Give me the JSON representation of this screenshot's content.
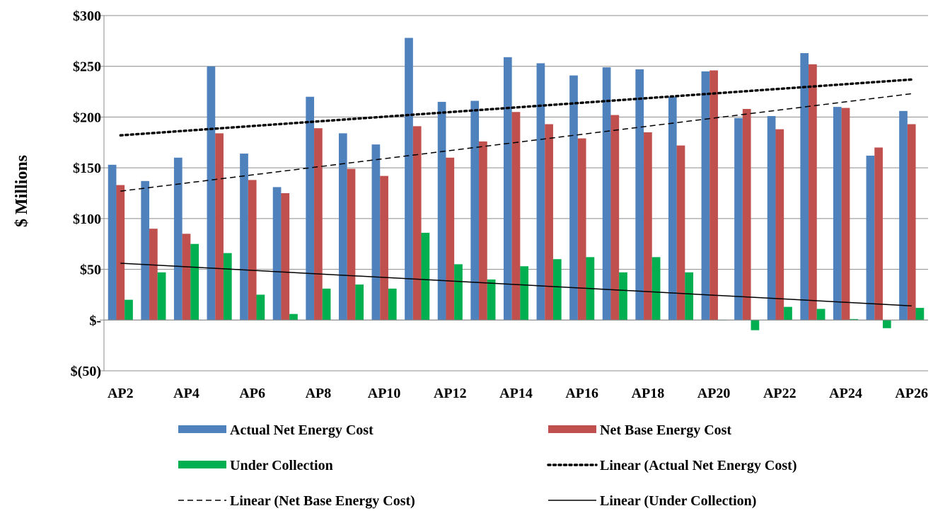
{
  "chart_data": {
    "type": "bar",
    "title": "",
    "xlabel": "",
    "ylabel": "$ Millions",
    "ylim": [
      -50,
      300
    ],
    "yticks": [
      {
        "value": 300,
        "label": "$300"
      },
      {
        "value": 250,
        "label": "$250"
      },
      {
        "value": 200,
        "label": "$200"
      },
      {
        "value": 150,
        "label": "$150"
      },
      {
        "value": 100,
        "label": "$100"
      },
      {
        "value": 50,
        "label": "$50"
      },
      {
        "value": 0,
        "label": "$-"
      },
      {
        "value": -50,
        "label": "$(50)"
      }
    ],
    "categories": [
      "AP2",
      "AP3",
      "AP4",
      "AP5",
      "AP6",
      "AP7",
      "AP8",
      "AP9",
      "AP10",
      "AP11",
      "AP12",
      "AP13",
      "AP14",
      "AP15",
      "AP16",
      "AP17",
      "AP18",
      "AP19",
      "AP20",
      "AP21",
      "AP22",
      "AP23",
      "AP24",
      "AP25",
      "AP26"
    ],
    "tick_labels_shown": [
      "AP2",
      "AP4",
      "AP6",
      "AP8",
      "AP10",
      "AP12",
      "AP14",
      "AP16",
      "AP18",
      "AP20",
      "AP22",
      "AP24",
      "AP26"
    ],
    "series": [
      {
        "name": "Actual Net Energy Cost",
        "color": "#4F81BD",
        "values": [
          153,
          137,
          160,
          250,
          164,
          131,
          220,
          184,
          173,
          278,
          215,
          216,
          259,
          253,
          241,
          249,
          247,
          220,
          245,
          199,
          201,
          263,
          210,
          162,
          206
        ]
      },
      {
        "name": "Net Base Energy Cost",
        "color": "#C0504D",
        "values": [
          133,
          90,
          85,
          184,
          138,
          125,
          189,
          149,
          142,
          191,
          160,
          176,
          205,
          193,
          179,
          202,
          185,
          172,
          246,
          208,
          188,
          252,
          209,
          170,
          193
        ]
      },
      {
        "name": "Under Collection",
        "color": "#00B050",
        "values": [
          20,
          47,
          75,
          66,
          25,
          6,
          31,
          35,
          31,
          86,
          55,
          40,
          53,
          60,
          62,
          47,
          62,
          47,
          0,
          -10,
          13,
          11,
          1,
          -8,
          12
        ]
      }
    ],
    "trendlines": [
      {
        "name": "Linear (Actual Net Energy Cost)",
        "style": "dotted",
        "color": "#000000",
        "start": 182,
        "end": 237
      },
      {
        "name": "Linear (Net Base Energy Cost)",
        "style": "dashed",
        "color": "#000000",
        "start": 127,
        "end": 223
      },
      {
        "name": "Linear (Under Collection)",
        "style": "solid",
        "color": "#000000",
        "start": 56,
        "end": 14
      }
    ],
    "grid": "horizontal",
    "legend_position": "bottom"
  }
}
